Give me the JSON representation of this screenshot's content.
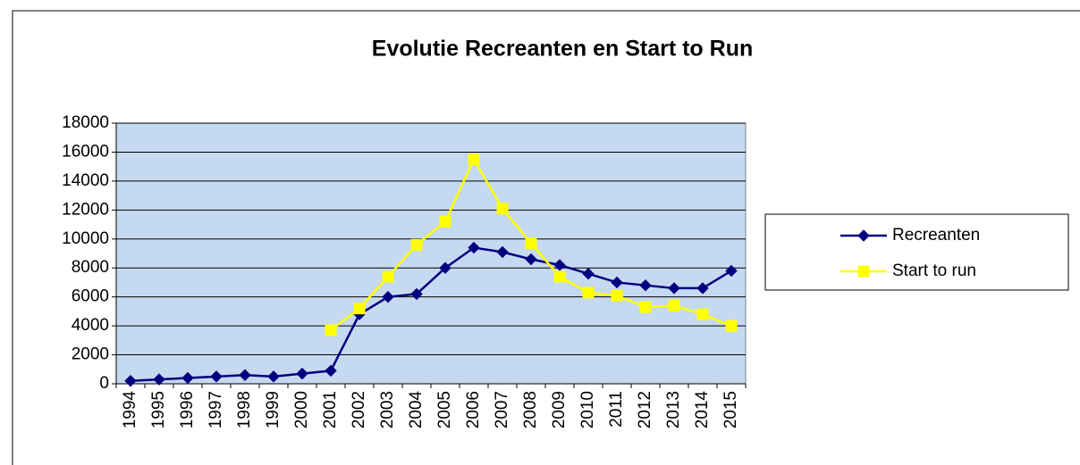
{
  "chart_data": {
    "type": "line",
    "title": "Evolutie Recreanten en Start to Run",
    "categories": [
      "1994",
      "1995",
      "1996",
      "1997",
      "1998",
      "1999",
      "2000",
      "2001",
      "2002",
      "2003",
      "2004",
      "2005",
      "2006",
      "2007",
      "2008",
      "2009",
      "2010",
      "2011",
      "2012",
      "2013",
      "2014",
      "2015"
    ],
    "series": [
      {
        "name": "Recreanten",
        "color": "#000080",
        "marker": "diamond",
        "values": [
          200,
          300,
          400,
          500,
          600,
          500,
          700,
          900,
          4800,
          6000,
          6200,
          8000,
          9400,
          9100,
          8600,
          8200,
          7600,
          7000,
          6800,
          6600,
          6600,
          7800
        ]
      },
      {
        "name": "Start to run",
        "color": "#ffff00",
        "marker": "square",
        "values": [
          null,
          null,
          null,
          null,
          null,
          null,
          null,
          3700,
          5200,
          7400,
          9600,
          11200,
          15500,
          12100,
          9700,
          7400,
          6300,
          6100,
          5300,
          5400,
          4800,
          4000
        ]
      }
    ],
    "ylim": [
      0,
      18000
    ],
    "yticks": [
      0,
      2000,
      4000,
      6000,
      8000,
      10000,
      12000,
      14000,
      16000,
      18000
    ],
    "grid": true,
    "legend": "right",
    "plot_background": "#c5d9f1"
  }
}
